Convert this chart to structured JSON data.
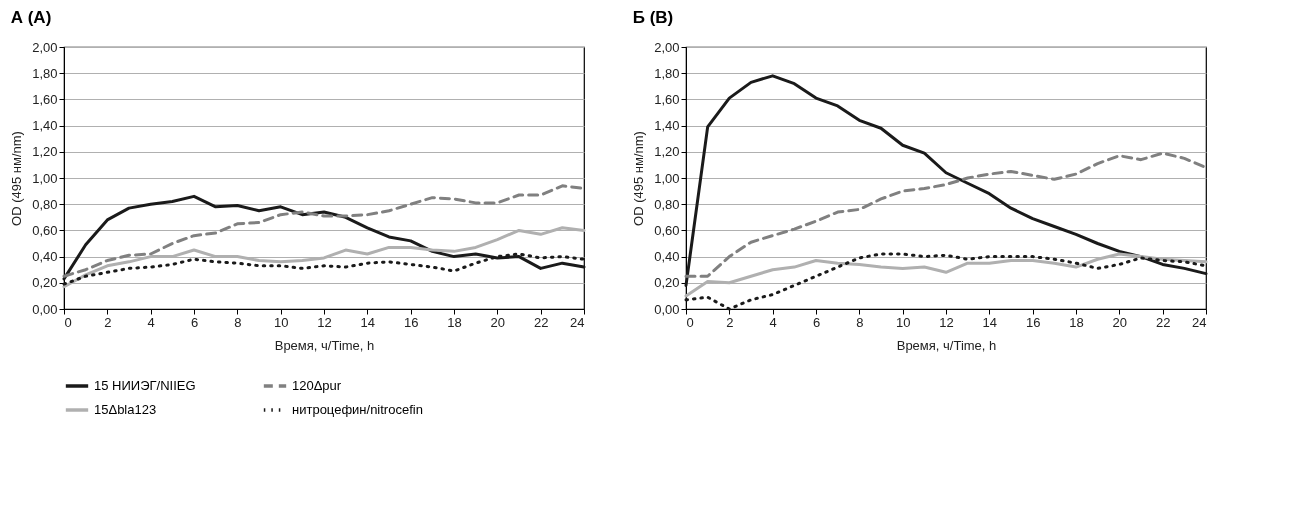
{
  "chart_data": [
    {
      "type": "line",
      "title": "А (A)",
      "xlabel": "Время, ч/Time, h",
      "ylabel": "OD (495 нм/nm)",
      "x": [
        0,
        1,
        2,
        3,
        4,
        5,
        6,
        7,
        8,
        9,
        10,
        11,
        12,
        13,
        14,
        15,
        16,
        17,
        18,
        19,
        20,
        21,
        22,
        23,
        24
      ],
      "xlim": [
        0,
        24
      ],
      "xticks": [
        0,
        2,
        4,
        6,
        8,
        10,
        12,
        14,
        16,
        18,
        20,
        22,
        24
      ],
      "ylim": [
        0,
        2
      ],
      "yticks": [
        {
          "value": 0,
          "label": "0,00"
        },
        {
          "value": 0.2,
          "label": "0,20"
        },
        {
          "value": 0.4,
          "label": "0,40"
        },
        {
          "value": 0.6,
          "label": "0,60"
        },
        {
          "value": 0.8,
          "label": "0,80"
        },
        {
          "value": 1,
          "label": "1,00"
        },
        {
          "value": 1.2,
          "label": "1,20"
        },
        {
          "value": 1.4,
          "label": "1,40"
        },
        {
          "value": 1.6,
          "label": "1,60"
        },
        {
          "value": 1.8,
          "label": "1,80"
        },
        {
          "value": 2,
          "label": "2,00"
        }
      ],
      "grid": "y",
      "legend": "bottom",
      "marker": "none",
      "series": [
        {
          "name": "15 НИИЭГ/NIIEG",
          "color": "#1a1a1a",
          "line_style": "solid",
          "values": [
            0.23,
            0.49,
            0.68,
            0.77,
            0.8,
            0.82,
            0.86,
            0.78,
            0.79,
            0.75,
            0.78,
            0.72,
            0.74,
            0.7,
            0.62,
            0.55,
            0.52,
            0.44,
            0.4,
            0.42,
            0.39,
            0.4,
            0.31,
            0.35,
            0.32
          ]
        },
        {
          "name": "120Δpur",
          "color": "#808080",
          "line_style": "dashed",
          "values": [
            0.25,
            0.3,
            0.37,
            0.41,
            0.42,
            0.5,
            0.56,
            0.58,
            0.65,
            0.66,
            0.72,
            0.74,
            0.71,
            0.71,
            0.72,
            0.75,
            0.8,
            0.85,
            0.84,
            0.81,
            0.81,
            0.87,
            0.87,
            0.94,
            0.92
          ]
        },
        {
          "name": "15Δbla123",
          "color": "#b0b0b0",
          "line_style": "solid",
          "values": [
            0.17,
            0.26,
            0.33,
            0.36,
            0.4,
            0.4,
            0.45,
            0.4,
            0.4,
            0.37,
            0.36,
            0.37,
            0.39,
            0.45,
            0.42,
            0.47,
            0.47,
            0.45,
            0.44,
            0.47,
            0.53,
            0.6,
            0.57,
            0.62,
            0.6
          ]
        },
        {
          "name": "нитроцефин/nitrocefin",
          "color": "#1a1a1a",
          "line_style": "dotted",
          "values": [
            0.19,
            0.25,
            0.28,
            0.31,
            0.32,
            0.34,
            0.38,
            0.36,
            0.35,
            0.33,
            0.33,
            0.31,
            0.33,
            0.32,
            0.35,
            0.36,
            0.34,
            0.32,
            0.29,
            0.35,
            0.4,
            0.42,
            0.39,
            0.4,
            0.38
          ]
        }
      ]
    },
    {
      "type": "line",
      "title": "Б (B)",
      "xlabel": "Время, ч/Time, h",
      "ylabel": "OD (495 нм/nm)",
      "x": [
        0,
        1,
        2,
        3,
        4,
        5,
        6,
        7,
        8,
        9,
        10,
        11,
        12,
        13,
        14,
        15,
        16,
        17,
        18,
        19,
        20,
        21,
        22,
        23,
        24
      ],
      "xlim": [
        0,
        24
      ],
      "xticks": [
        0,
        2,
        4,
        6,
        8,
        10,
        12,
        14,
        16,
        18,
        20,
        22,
        24
      ],
      "ylim": [
        0,
        2
      ],
      "yticks": [
        {
          "value": 0,
          "label": "0,00"
        },
        {
          "value": 0.2,
          "label": "0,20"
        },
        {
          "value": 0.4,
          "label": "0,40"
        },
        {
          "value": 0.6,
          "label": "0,60"
        },
        {
          "value": 0.8,
          "label": "0,80"
        },
        {
          "value": 1,
          "label": "1,00"
        },
        {
          "value": 1.2,
          "label": "1,20"
        },
        {
          "value": 1.4,
          "label": "1,40"
        },
        {
          "value": 1.6,
          "label": "1,60"
        },
        {
          "value": 1.8,
          "label": "1,80"
        },
        {
          "value": 2,
          "label": "2,00"
        }
      ],
      "grid": "y",
      "legend": "bottom",
      "marker": "none",
      "series": [
        {
          "name": "15 НИИЭГ/NIIEG",
          "color": "#1a1a1a",
          "line_style": "solid",
          "values": [
            0.18,
            1.39,
            1.61,
            1.73,
            1.78,
            1.72,
            1.61,
            1.55,
            1.44,
            1.38,
            1.25,
            1.19,
            1.04,
            0.96,
            0.88,
            0.77,
            0.69,
            0.63,
            0.57,
            0.5,
            0.44,
            0.4,
            0.34,
            0.31,
            0.27
          ]
        },
        {
          "name": "120Δpur",
          "color": "#808080",
          "line_style": "dashed",
          "values": [
            0.25,
            0.25,
            0.4,
            0.51,
            0.56,
            0.61,
            0.67,
            0.74,
            0.76,
            0.84,
            0.9,
            0.92,
            0.95,
            1.0,
            1.03,
            1.05,
            1.02,
            0.99,
            1.03,
            1.11,
            1.17,
            1.14,
            1.19,
            1.15,
            1.08
          ]
        },
        {
          "name": "15Δbla123",
          "color": "#b0b0b0",
          "line_style": "solid",
          "values": [
            0.1,
            0.21,
            0.2,
            0.25,
            0.3,
            0.32,
            0.37,
            0.35,
            0.34,
            0.32,
            0.31,
            0.32,
            0.28,
            0.35,
            0.35,
            0.37,
            0.37,
            0.35,
            0.32,
            0.38,
            0.42,
            0.4,
            0.38,
            0.37,
            0.36
          ]
        },
        {
          "name": "нитроцефин/nitrocefin",
          "color": "#1a1a1a",
          "line_style": "dotted",
          "values": [
            0.07,
            0.09,
            0.0,
            0.07,
            0.11,
            0.18,
            0.25,
            0.32,
            0.39,
            0.42,
            0.42,
            0.4,
            0.41,
            0.38,
            0.4,
            0.4,
            0.4,
            0.38,
            0.35,
            0.31,
            0.34,
            0.39,
            0.37,
            0.36,
            0.33
          ]
        }
      ]
    }
  ]
}
